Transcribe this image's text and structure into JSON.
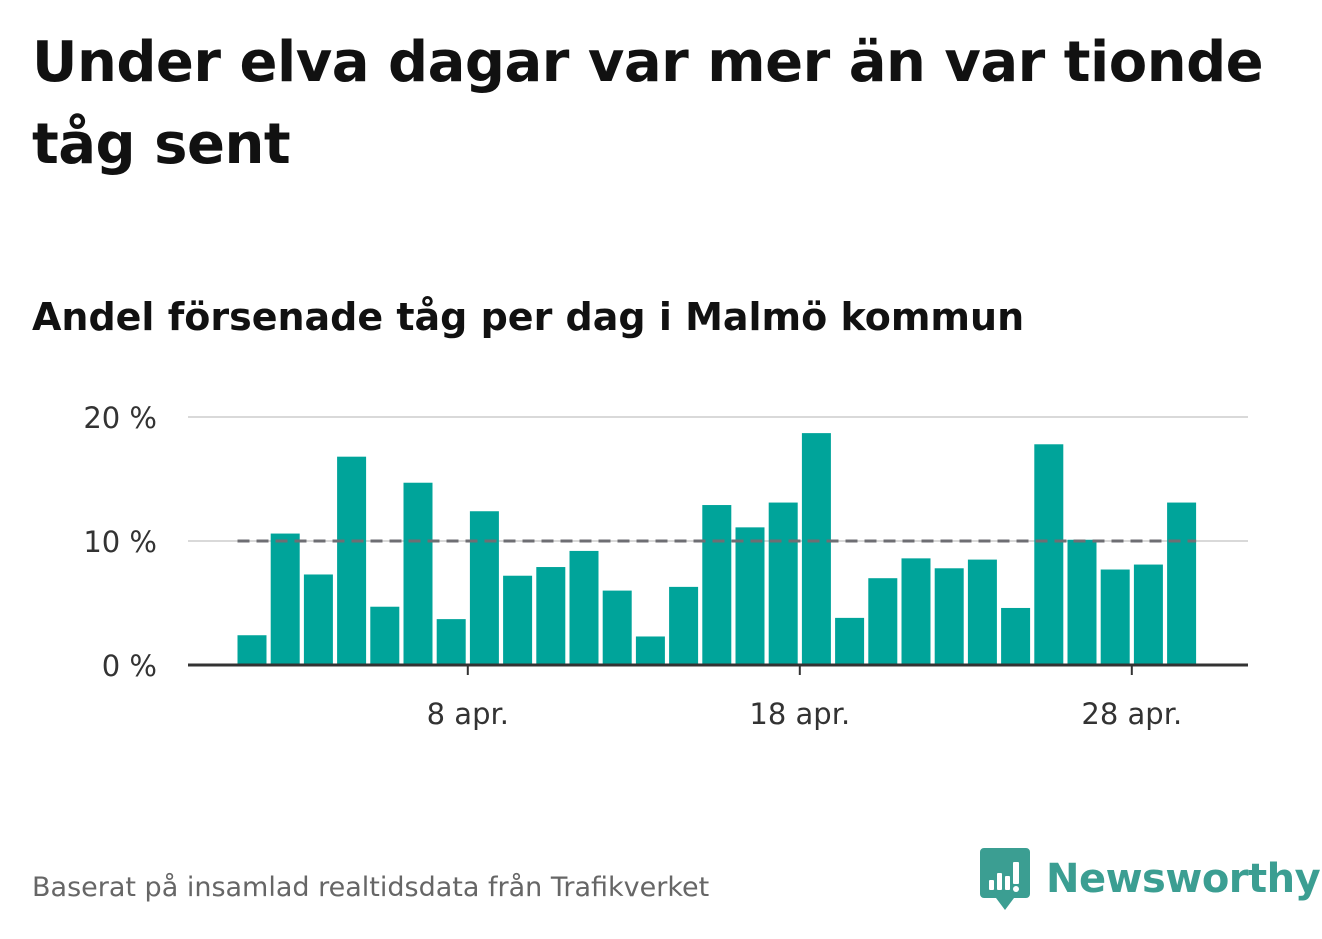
{
  "title": "Under elva dagar var mer än var tionde tåg sent",
  "subtitle": "Andel försenade tåg per dag i Malmö kommun",
  "footer": {
    "source": "Baserat på insamlad realtidsdata från Trafikverket",
    "brand": "Newsworthy"
  },
  "colors": {
    "bar": "#00a49a",
    "reference_line": "#6e6e73",
    "grid": "#d9d9d9",
    "axis": "#333333",
    "brand": "#3b9e92"
  },
  "icons": {
    "brand_logo": "newsworthy-logo-icon"
  },
  "chart_data": {
    "type": "bar",
    "title": "Andel försenade tåg per dag i Malmö kommun",
    "xlabel": "",
    "ylabel": "",
    "x": [
      "1 apr.",
      "2 apr.",
      "3 apr.",
      "4 apr.",
      "5 apr.",
      "6 apr.",
      "7 apr.",
      "8 apr.",
      "9 apr.",
      "10 apr.",
      "11 apr.",
      "12 apr.",
      "13 apr.",
      "14 apr.",
      "15 apr.",
      "16 apr.",
      "17 apr.",
      "18 apr.",
      "19 apr.",
      "20 apr.",
      "21 apr.",
      "22 apr.",
      "23 apr.",
      "24 apr.",
      "25 apr.",
      "26 apr.",
      "27 apr.",
      "28 apr.",
      "29 apr."
    ],
    "values": [
      2.4,
      10.6,
      7.3,
      16.8,
      4.7,
      14.7,
      3.7,
      12.4,
      7.2,
      7.9,
      9.2,
      6.0,
      2.3,
      6.3,
      12.9,
      11.1,
      13.1,
      18.7,
      3.8,
      7.0,
      8.6,
      7.8,
      8.5,
      4.6,
      17.8,
      10.1,
      7.7,
      8.1,
      13.1
    ],
    "reference_line": 10,
    "ylim": [
      0,
      20
    ],
    "yticks": [
      {
        "value": 0,
        "label": "0 %"
      },
      {
        "value": 10,
        "label": "10 %"
      },
      {
        "value": 20,
        "label": "20 %"
      }
    ],
    "xticks": [
      {
        "index": 7,
        "label": "8 apr."
      },
      {
        "index": 17,
        "label": "18 apr."
      },
      {
        "index": 27,
        "label": "28 apr."
      }
    ],
    "grid": true,
    "legend": "none"
  }
}
